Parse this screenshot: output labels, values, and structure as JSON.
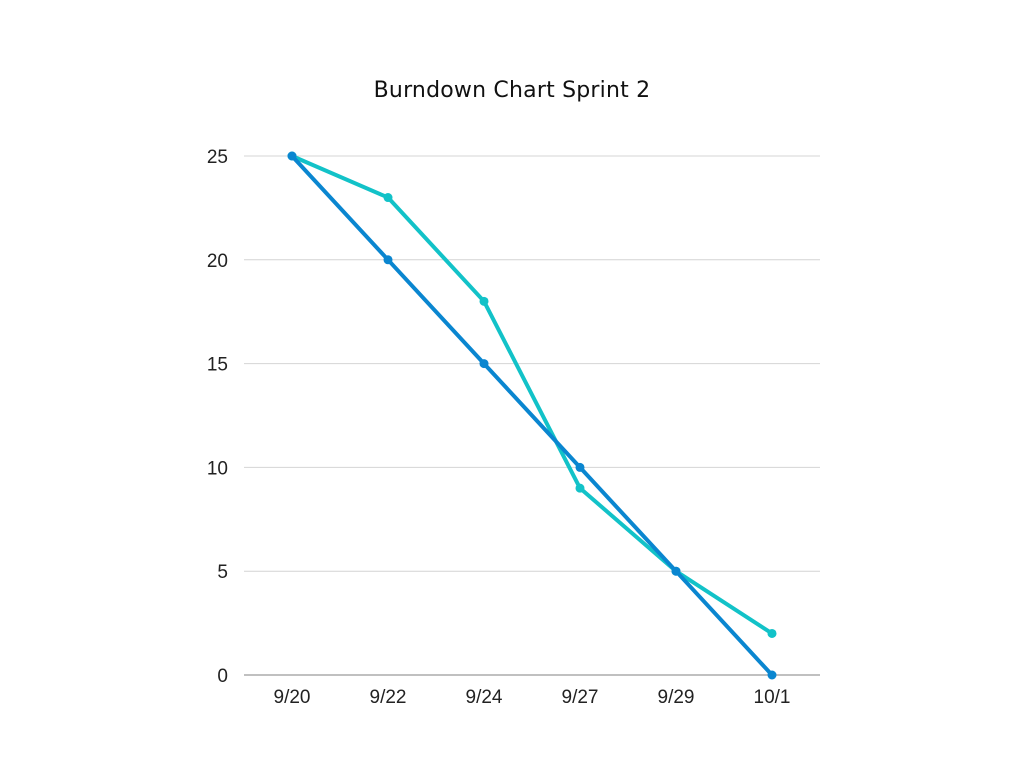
{
  "chart_data": {
    "type": "line",
    "title": "Burndown Chart Sprint 2",
    "xlabel": "",
    "ylabel": "",
    "categories": [
      "9/20",
      "9/22",
      "9/24",
      "9/27",
      "9/29",
      "10/1"
    ],
    "ylim": [
      0,
      25
    ],
    "yticks": [
      0,
      5,
      10,
      15,
      20,
      25
    ],
    "grid": true,
    "legend": "none",
    "series": [
      {
        "values": [
          25,
          23,
          18,
          9,
          5,
          2
        ],
        "color": "#12c2c8"
      },
      {
        "values": [
          25,
          20,
          15,
          10,
          5,
          0
        ],
        "color": "#0a86d0"
      }
    ]
  }
}
